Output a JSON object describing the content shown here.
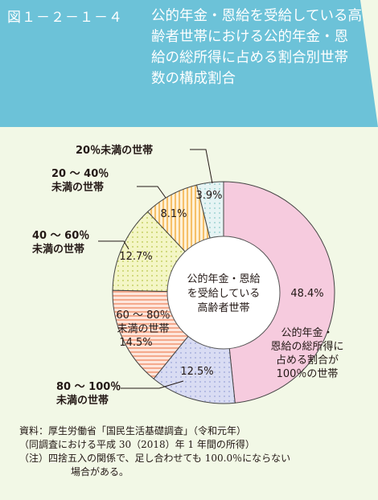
{
  "header": {
    "figure_number": "図１－２－１－４",
    "title": "公的年金・恩給を受給している高齢者世帯における公的年金・恩給の総所得に占める割合別世帯数の構成割合"
  },
  "chart_data": {
    "type": "donut",
    "center_label": [
      "公的年金・恩給",
      "を受給している",
      "高齢者世帯"
    ],
    "slices": [
      {
        "label": [
          "公的年金・",
          "恩給の総所得に",
          "占める割合が",
          "100％の世帯"
        ],
        "value": 48.4,
        "value_text": "48.4%",
        "color": "#f6cbde",
        "pattern": "solid"
      },
      {
        "label": [
          "80 ～ 100％",
          "未満の世帯"
        ],
        "value": 12.5,
        "value_text": "12.5%",
        "color": "#d9dcf3",
        "pattern": "dots"
      },
      {
        "label": [
          "60 ～ 80％",
          "未満の世帯"
        ],
        "value": 14.5,
        "value_text": "14.5%",
        "color": "#fbd3c4",
        "pattern": "hstripes"
      },
      {
        "label": [
          "40 ～ 60％",
          "未満の世帯"
        ],
        "value": 12.7,
        "value_text": "12.7%",
        "color": "#f0f3b6",
        "pattern": "dots"
      },
      {
        "label": [
          "20 ～ 40％",
          "未満の世帯"
        ],
        "value": 8.1,
        "value_text": "8.1%",
        "color": "#fde0b0",
        "pattern": "vstripes"
      },
      {
        "label": [
          "20％未満の世帯"
        ],
        "value": 3.9,
        "value_text": "3.9%",
        "color": "#dcefef",
        "pattern": "dots"
      }
    ]
  },
  "notes": {
    "source": "資料：厚生労働省「国民生活基礎調査」（令和元年）",
    "source2": "（同調査における平成 30（2018）年 1 年間の所得）",
    "note1": "（注）四捨五入の関係で、足し合わせても 100.0％にならない",
    "note2": "場合がある。"
  }
}
